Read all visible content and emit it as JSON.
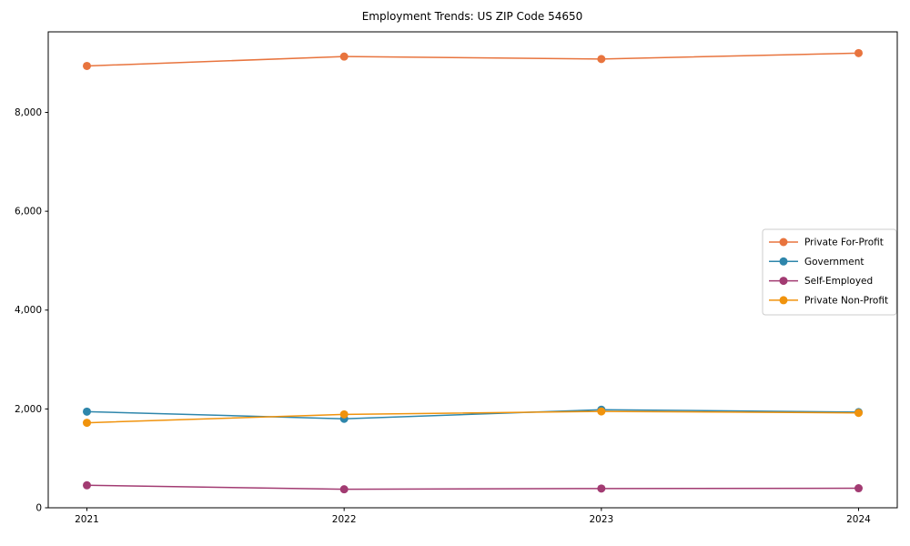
{
  "chart_data": {
    "type": "line",
    "title": "Employment Trends: US ZIP Code 54650",
    "xlabel": "",
    "ylabel": "",
    "categories": [
      "2021",
      "2022",
      "2023",
      "2024"
    ],
    "series": [
      {
        "name": "Private For-Profit",
        "color": "#E8743E",
        "values": [
          8940,
          9130,
          9080,
          9200
        ]
      },
      {
        "name": "Government",
        "color": "#2E86AB",
        "values": [
          1945,
          1800,
          1985,
          1935
        ]
      },
      {
        "name": "Self-Employed",
        "color": "#A23B72",
        "values": [
          455,
          375,
          390,
          395
        ]
      },
      {
        "name": "Private Non-Profit",
        "color": "#F0930D",
        "values": [
          1720,
          1890,
          1950,
          1920
        ]
      }
    ],
    "yticks": [
      0,
      2000,
      4000,
      6000,
      8000
    ],
    "ytick_labels": [
      "0",
      "2,000",
      "4,000",
      "6,000",
      "8,000"
    ],
    "ylim": [
      0,
      9630
    ],
    "grid": false,
    "marker": "circle",
    "legend_position": "center-right",
    "colors": {
      "background": "#ffffff",
      "axis": "#000000",
      "legend_border": "#cccccc",
      "legend_background": "#ffffff"
    }
  }
}
